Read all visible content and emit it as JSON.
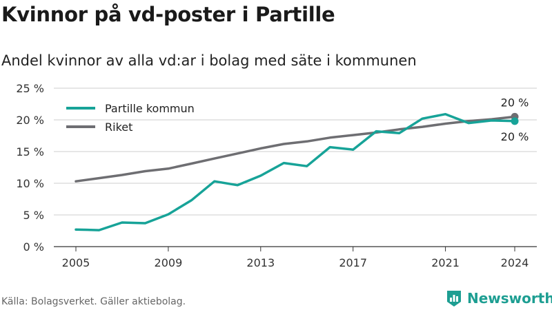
{
  "title": "Kvinnor på vd-poster i Partille",
  "subtitle": "Andel kvinnor av alla vd:ar i bolag med säte i kommunen",
  "source": "Källa: Bolagsverket. Gäller aktiebolag.",
  "brand": "Newsworthy",
  "colors": {
    "partille": "#17a398",
    "riket": "#6e6e72",
    "grid": "#cccccc",
    "axis": "#333333"
  },
  "chart_data": {
    "type": "line",
    "xlim": [
      2005,
      2024
    ],
    "ylim": [
      0,
      25
    ],
    "xticks": [
      2005,
      2009,
      2013,
      2017,
      2021,
      2024
    ],
    "xtick_labels": [
      "2005",
      "2009",
      "2013",
      "2017",
      "2021",
      "2024"
    ],
    "yticks": [
      0,
      5,
      10,
      15,
      20,
      25
    ],
    "ytick_labels": [
      "0 %",
      "5 %",
      "10 %",
      "15 %",
      "20 %",
      "25 %"
    ],
    "legend": "top-left",
    "grid": "horizontal",
    "x": [
      2005,
      2006,
      2007,
      2008,
      2009,
      2010,
      2011,
      2012,
      2013,
      2014,
      2015,
      2016,
      2017,
      2018,
      2019,
      2020,
      2021,
      2022,
      2023,
      2024
    ],
    "series": [
      {
        "name": "Partille kommun",
        "color": "#17a398",
        "values": [
          2.7,
          2.6,
          3.8,
          3.7,
          5.1,
          7.3,
          10.3,
          9.7,
          11.2,
          13.2,
          12.7,
          15.7,
          15.3,
          18.2,
          17.9,
          20.2,
          20.9,
          19.5,
          19.9,
          19.8
        ],
        "end_label": "20 %"
      },
      {
        "name": "Riket",
        "color": "#6e6e72",
        "values": [
          10.3,
          10.8,
          11.3,
          11.9,
          12.3,
          13.1,
          13.9,
          14.7,
          15.5,
          16.2,
          16.6,
          17.2,
          17.6,
          18.0,
          18.5,
          18.9,
          19.4,
          19.8,
          20.1,
          20.5
        ],
        "end_label": "20 %"
      }
    ]
  }
}
